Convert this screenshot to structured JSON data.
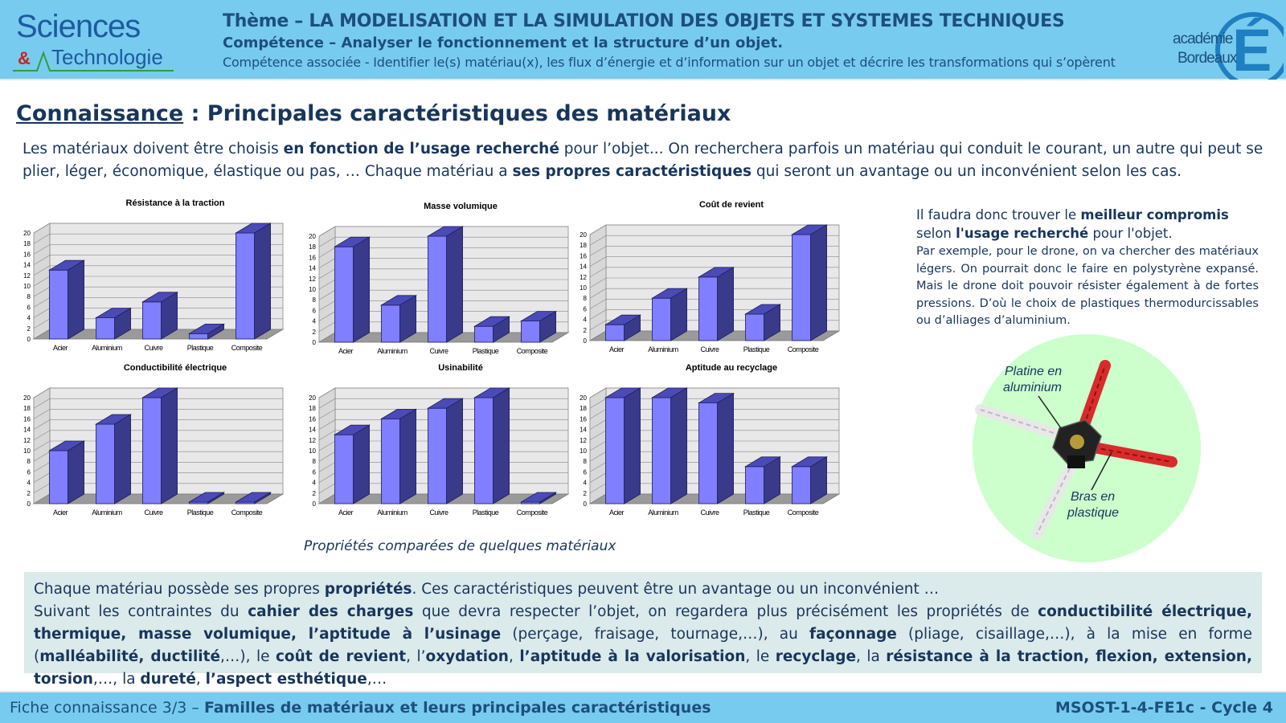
{
  "header": {
    "logo_line1": "Sciences",
    "logo_line2_amp": "&",
    "logo_line2": "Technologie",
    "theme": "Thème – LA MODELISATION ET LA SIMULATION DES OBJETS ET SYSTEMES TECHNIQUES",
    "competence": "Compétence – Analyser le fonctionnement et la structure d’un objet.",
    "associated": "Compétence associée - Identifier le(s) matériau(x), les flux d’énergie et d’information sur un objet et décrire les transformations qui s’opèrent",
    "academy_line1": "académie",
    "academy_line2": "Bordeaux",
    "academy_letter": "É",
    "colors": {
      "band": "#77cbef",
      "text": "#1d4f7c",
      "academy_blue": "#1f7fc1"
    }
  },
  "title": {
    "underlined": "Connaissance",
    "rest": " : Principales caractéristiques des matériaux"
  },
  "intro": {
    "t1": "Les matériaux doivent être choisis ",
    "b1": "en fonction de l’usage recherché",
    "t2": " pour l’objet...  On recherchera parfois un matériau qui conduit le courant, un autre qui peut se plier, léger, économique, élastique ou pas, … Chaque matériau a ",
    "b2": "ses propres caractéristiques",
    "t3": " qui seront un avantage ou un inconvénient selon les cas."
  },
  "chart_data": [
    {
      "type": "bar",
      "title": "Résistance à la traction",
      "categories": [
        "Acier",
        "Aluminium",
        "Cuivre",
        "Plastique",
        "Composite"
      ],
      "values": [
        13,
        4,
        7,
        1,
        20
      ],
      "ylim": [
        0,
        20
      ],
      "yticks": [
        0,
        2,
        4,
        6,
        8,
        10,
        12,
        14,
        16,
        18,
        20
      ],
      "grid": true,
      "legend": "none",
      "bar_color": "#7f7fff"
    },
    {
      "type": "bar",
      "title": "Masse volumique",
      "categories": [
        "Acier",
        "Aluminium",
        "Cuivre",
        "Plastique",
        "Composite"
      ],
      "values": [
        18,
        7,
        20,
        3,
        4
      ],
      "ylim": [
        0,
        20
      ],
      "yticks": [
        0,
        2,
        4,
        6,
        8,
        10,
        12,
        14,
        16,
        18,
        20
      ],
      "grid": true,
      "legend": "none",
      "bar_color": "#7f7fff"
    },
    {
      "type": "bar",
      "title": "Coût de revient",
      "categories": [
        "Acier",
        "Aluminium",
        "Cuivre",
        "Plastique",
        "Composite"
      ],
      "values": [
        3,
        8,
        12,
        5,
        20
      ],
      "ylim": [
        0,
        20
      ],
      "yticks": [
        0,
        2,
        4,
        6,
        8,
        10,
        12,
        14,
        16,
        18,
        20
      ],
      "grid": true,
      "legend": "none",
      "bar_color": "#7f7fff"
    },
    {
      "type": "bar",
      "title": "Conductibilité électrique",
      "categories": [
        "Acier",
        "Aluminium",
        "Cuivre",
        "Plastique",
        "Composite"
      ],
      "values": [
        10,
        15,
        20,
        0,
        0
      ],
      "ylim": [
        0,
        20
      ],
      "yticks": [
        0,
        2,
        4,
        6,
        8,
        10,
        12,
        14,
        16,
        18,
        20
      ],
      "grid": true,
      "legend": "none",
      "bar_color": "#7f7fff"
    },
    {
      "type": "bar",
      "title": "Usinabilité",
      "categories": [
        "Acier",
        "Aluminium",
        "Cuivre",
        "Plastique",
        "Composite"
      ],
      "values": [
        13,
        16,
        18,
        20,
        0
      ],
      "ylim": [
        0,
        20
      ],
      "yticks": [
        0,
        2,
        4,
        6,
        8,
        10,
        12,
        14,
        16,
        18,
        20
      ],
      "grid": true,
      "legend": "none",
      "bar_color": "#7f7fff"
    },
    {
      "type": "bar",
      "title": "Aptitude au recyclage",
      "categories": [
        "Acier",
        "Aluminium",
        "Cuivre",
        "Plastique",
        "Composite"
      ],
      "values": [
        20,
        20,
        19,
        7,
        7
      ],
      "ylim": [
        0,
        20
      ],
      "yticks": [
        0,
        2,
        4,
        6,
        8,
        10,
        12,
        14,
        16,
        18,
        20
      ],
      "grid": true,
      "legend": "none",
      "bar_color": "#7f7fff"
    }
  ],
  "charts_caption": "Propriétés comparées de quelques matériaux",
  "side": {
    "p1_t1": "Il faudra donc trouver le ",
    "p1_b1": "meilleur compromis",
    "p1_t2": " selon ",
    "p1_b2": "l'usage recherché",
    "p1_t3": " pour l'objet.",
    "p2": "Par exemple, pour le drone, on va chercher des matériaux légers. On pourrait donc le faire en polystyrène expansé. Mais le drone doit pouvoir résister également à de fortes pressions.  D’où le choix de plastiques thermodurcissables ou d’alliages d’aluminium."
  },
  "drone": {
    "label1_line1": "Platine en",
    "label1_line2": "aluminium",
    "label2_line1": "Bras en",
    "label2_line2": "plastique",
    "colors": {
      "circle": "#ccffcc",
      "red_arm": "#d92b2b",
      "white_arm": "#f2f2f2",
      "board": "#222222"
    }
  },
  "bottom": {
    "l1_t1": "Chaque matériau possède ses propres ",
    "l1_b1": "propriétés",
    "l1_t2": ". Ces caractéristiques peuvent être un avantage ou un inconvénient …",
    "p_t1": "Suivant les contraintes du ",
    "p_b1": "cahier des charges",
    "p_t2": " que devra respecter l’objet, on regardera plus précisément les propriétés de ",
    "p_b2": "conductibilité électrique, thermique, masse volumique, l’aptitude à l’usinage",
    "p_t3": " (perçage, fraisage, tournage,…), au ",
    "p_b3": "façonnage",
    "p_t4": " (pliage, cisaillage,…), à la mise en forme (",
    "p_b4": "malléabilité, ductilité",
    "p_t5": ",…), le ",
    "p_b5": "coût de revient",
    "p_t6": ", l’",
    "p_b6": "oxydation",
    "p_t7": ", ",
    "p_b7": "l’aptitude à la valorisation",
    "p_t8": ", le ",
    "p_b8": "recyclage",
    "p_t9": ", la ",
    "p_b9": "résistance à la traction, flexion, extension, torsion",
    "p_t10": ",…, la ",
    "p_b10": "dureté",
    "p_t11": ", ",
    "p_b11": "l’aspect esthétique",
    "p_t12": ",…"
  },
  "footer": {
    "left_normal": "Fiche connaissance 3/3 – ",
    "left_bold": "Familles de matériaux et leurs principales caractéristiques",
    "right": "MSOST-1-4-FE1c - Cycle 4"
  }
}
